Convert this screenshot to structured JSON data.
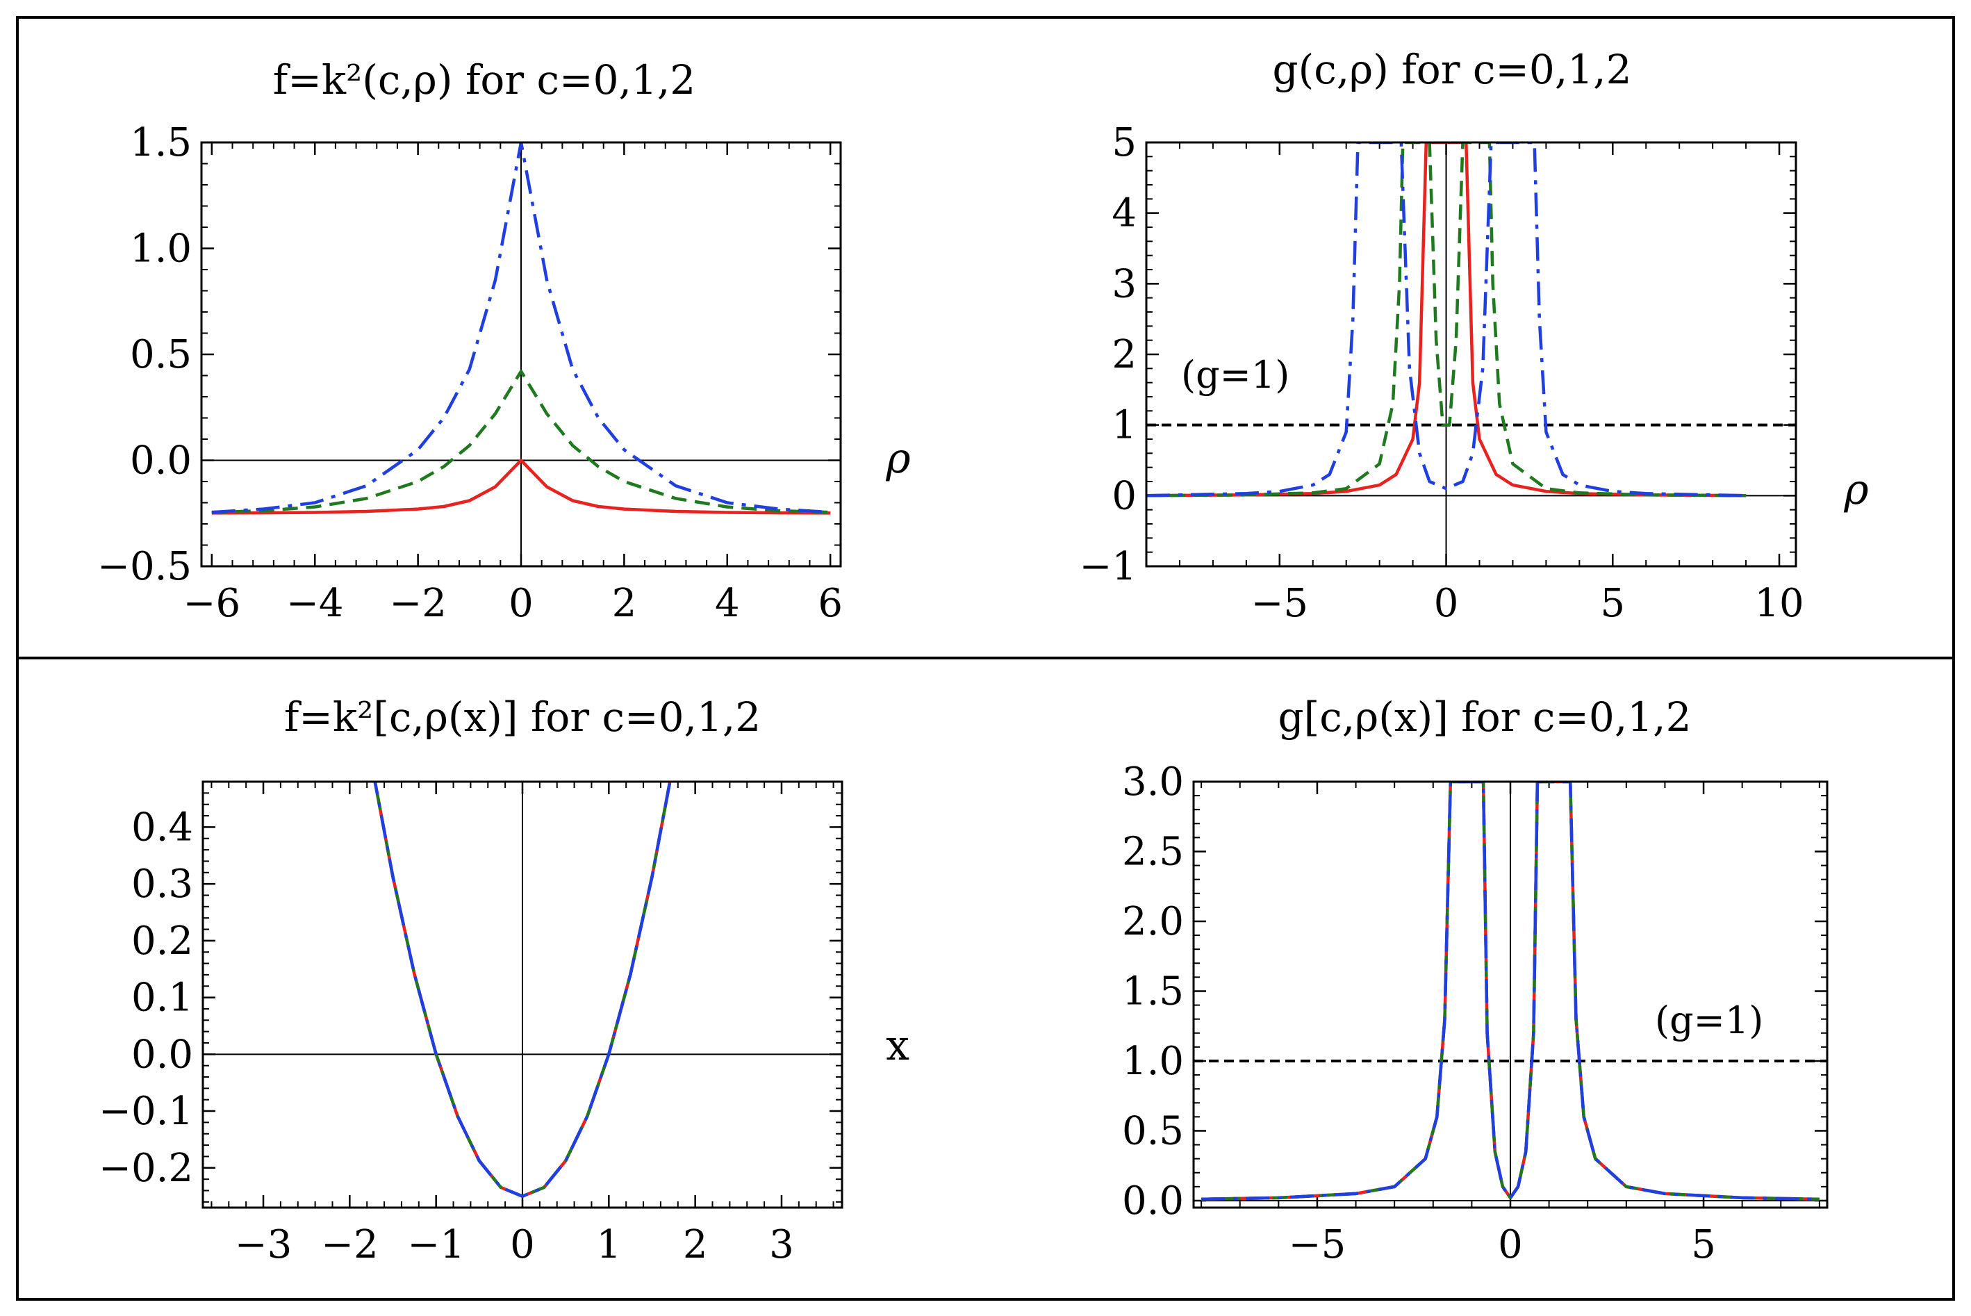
{
  "chart_data": [
    {
      "id": "p1",
      "type": "line",
      "title": "f=k²(c,ρ)  for c=0,1,2",
      "xlabel": "ρ",
      "ylabel": "",
      "xlim": [
        -6.2,
        6.2
      ],
      "ylim": [
        -0.5,
        1.5
      ],
      "xticks": [
        -6,
        -4,
        -2,
        0,
        2,
        4,
        6
      ],
      "yticks": [
        -0.5,
        0.0,
        0.5,
        1.0,
        1.5
      ],
      "xtick_labels": [
        "−6",
        "−4",
        "−2",
        "0",
        "2",
        "4",
        "6"
      ],
      "ytick_labels": [
        "−0.5",
        "0.0",
        "0.5",
        "1.0",
        "1.5"
      ],
      "series": [
        {
          "name": "c=0",
          "color": "#e8231f",
          "style": "solid",
          "x": [
            -6,
            -5,
            -4,
            -3,
            -2,
            -1.5,
            -1,
            -0.5,
            0,
            0.5,
            1,
            1.5,
            2,
            3,
            4,
            5,
            6
          ],
          "y": [
            -0.249,
            -0.248,
            -0.246,
            -0.241,
            -0.23,
            -0.218,
            -0.19,
            -0.125,
            0.0,
            -0.125,
            -0.19,
            -0.218,
            -0.23,
            -0.241,
            -0.246,
            -0.248,
            -0.249
          ]
        },
        {
          "name": "c=1",
          "color": "#1f7a1f",
          "style": "dashed",
          "x": [
            -6,
            -5,
            -4,
            -3,
            -2,
            -1.5,
            -1,
            -0.5,
            0,
            0.5,
            1,
            1.5,
            2,
            3,
            4,
            5,
            6
          ],
          "y": [
            -0.245,
            -0.238,
            -0.22,
            -0.18,
            -0.1,
            -0.03,
            0.07,
            0.22,
            0.42,
            0.22,
            0.07,
            -0.03,
            -0.1,
            -0.18,
            -0.22,
            -0.238,
            -0.245
          ]
        },
        {
          "name": "c=2",
          "color": "#1f3fe0",
          "style": "dashdot",
          "x": [
            -6,
            -5,
            -4,
            -3,
            -2,
            -1.5,
            -1,
            -0.5,
            0,
            0.5,
            1,
            1.5,
            2,
            3,
            4,
            5,
            6
          ],
          "y": [
            -0.245,
            -0.23,
            -0.2,
            -0.12,
            0.05,
            0.2,
            0.43,
            0.85,
            1.5,
            0.85,
            0.43,
            0.2,
            0.05,
            -0.12,
            -0.2,
            -0.23,
            -0.245
          ]
        }
      ]
    },
    {
      "id": "p2",
      "type": "line",
      "title": "g(c,ρ) for c=0,1,2",
      "xlabel": "ρ",
      "ylabel": "",
      "xlim": [
        -9,
        10.5
      ],
      "ylim": [
        -1,
        5
      ],
      "xticks": [
        -5,
        0,
        5,
        10
      ],
      "yticks": [
        -1,
        0,
        1,
        2,
        3,
        4,
        5
      ],
      "xtick_labels": [
        "−5",
        "0",
        "5",
        "10"
      ],
      "ytick_labels": [
        "−1",
        "0",
        "1",
        "2",
        "3",
        "4",
        "5"
      ],
      "annotation": "(g=1)",
      "reference_line": {
        "y": 1,
        "color": "#000000",
        "style": "dashed"
      },
      "series": [
        {
          "name": "c=0",
          "color": "#e8231f",
          "style": "solid",
          "x": [
            -9,
            -6,
            -4,
            -3,
            -2,
            -1.5,
            -1,
            -0.8,
            -0.6,
            0.6,
            0.8,
            1,
            1.5,
            2,
            3,
            4,
            6,
            9
          ],
          "y": [
            0.0,
            0.01,
            0.03,
            0.06,
            0.15,
            0.3,
            0.8,
            1.6,
            5,
            5,
            1.6,
            0.8,
            0.3,
            0.15,
            0.06,
            0.03,
            0.01,
            0.0
          ]
        },
        {
          "name": "c=1",
          "color": "#1f7a1f",
          "style": "dashed",
          "x": [
            -9,
            -6,
            -4,
            -3,
            -2,
            -1.6,
            -1.4,
            -1.3,
            -0.5,
            -0.3,
            -0.1,
            0.1,
            0.3,
            0.5,
            1.3,
            1.4,
            1.6,
            2,
            3,
            4,
            6,
            9
          ],
          "y": [
            0.0,
            0.01,
            0.04,
            0.1,
            0.45,
            1.3,
            3.0,
            5,
            5,
            2.2,
            1.0,
            1.0,
            2.2,
            5,
            5,
            3.0,
            1.3,
            0.45,
            0.1,
            0.04,
            0.01,
            0.0
          ]
        },
        {
          "name": "c=2",
          "color": "#1f3fe0",
          "style": "dashdot",
          "x": [
            -9,
            -6,
            -5,
            -4,
            -3.5,
            -3,
            -2.8,
            -2.65,
            -1.35,
            -1.1,
            -0.8,
            -0.5,
            0,
            0.5,
            0.8,
            1.1,
            1.35,
            2.65,
            2.8,
            3,
            3.5,
            4,
            5,
            6,
            9
          ],
          "y": [
            0.0,
            0.03,
            0.06,
            0.15,
            0.3,
            0.9,
            2.5,
            5,
            5,
            1.8,
            0.6,
            0.2,
            0.1,
            0.2,
            0.6,
            1.8,
            5,
            5,
            2.5,
            0.9,
            0.3,
            0.15,
            0.06,
            0.03,
            0.0
          ]
        }
      ]
    },
    {
      "id": "p3",
      "type": "line",
      "title": "f=k²[c,ρ(x)] for c=0,1,2",
      "xlabel": "x",
      "ylabel": "",
      "xlim": [
        -3.7,
        3.7
      ],
      "ylim": [
        -0.27,
        0.48
      ],
      "xticks": [
        -3,
        -2,
        -1,
        0,
        1,
        2,
        3
      ],
      "yticks": [
        -0.2,
        -0.1,
        0.0,
        0.1,
        0.2,
        0.3,
        0.4
      ],
      "xtick_labels": [
        "−3",
        "−2",
        "−1",
        "0",
        "1",
        "2",
        "3"
      ],
      "ytick_labels": [
        "−0.2",
        "−0.1",
        "0.0",
        "0.1",
        "0.2",
        "0.3",
        "0.4"
      ],
      "series": [
        {
          "name": "c=0",
          "color": "#e8231f",
          "style": "solid",
          "x": [
            -1.73,
            -1.5,
            -1.25,
            -1.0,
            -0.75,
            -0.5,
            -0.25,
            0,
            0.25,
            0.5,
            0.75,
            1.0,
            1.25,
            1.5,
            1.73
          ],
          "y": [
            0.4984,
            0.3125,
            0.1406,
            0.0,
            -0.1094,
            -0.1875,
            -0.2344,
            -0.25,
            -0.2344,
            -0.1875,
            -0.1094,
            0.0,
            0.1406,
            0.3125,
            0.4984
          ]
        },
        {
          "name": "c=1",
          "color": "#1f7a1f",
          "style": "dashed",
          "x": [
            -1.73,
            -1.5,
            -1.25,
            -1.0,
            -0.75,
            -0.5,
            -0.25,
            0,
            0.25,
            0.5,
            0.75,
            1.0,
            1.25,
            1.5,
            1.73
          ],
          "y": [
            0.4984,
            0.3125,
            0.1406,
            0.0,
            -0.1094,
            -0.1875,
            -0.2344,
            -0.25,
            -0.2344,
            -0.1875,
            -0.1094,
            0.0,
            0.1406,
            0.3125,
            0.4984
          ]
        },
        {
          "name": "c=2",
          "color": "#1f3fe0",
          "style": "dashdot",
          "x": [
            -1.73,
            -1.5,
            -1.25,
            -1.0,
            -0.75,
            -0.5,
            -0.25,
            0,
            0.25,
            0.5,
            0.75,
            1.0,
            1.25,
            1.5,
            1.73
          ],
          "y": [
            0.4984,
            0.3125,
            0.1406,
            0.0,
            -0.1094,
            -0.1875,
            -0.2344,
            -0.25,
            -0.2344,
            -0.1875,
            -0.1094,
            0.0,
            0.1406,
            0.3125,
            0.4984
          ]
        }
      ]
    },
    {
      "id": "p4",
      "type": "line",
      "title": "g[c,ρ(x)] for c=0,1,2",
      "xlabel": "",
      "ylabel": "",
      "xlim": [
        -8.2,
        8.2
      ],
      "ylim": [
        -0.05,
        3.0
      ],
      "xticks": [
        -5,
        0,
        5
      ],
      "yticks": [
        0.0,
        0.5,
        1.0,
        1.5,
        2.0,
        2.5,
        3.0
      ],
      "xtick_labels": [
        "−5",
        "0",
        "5"
      ],
      "ytick_labels": [
        "0.0",
        "0.5",
        "1.0",
        "1.5",
        "2.0",
        "2.5",
        "3.0"
      ],
      "annotation": "(g=1)",
      "reference_line": {
        "y": 1,
        "color": "#000000",
        "style": "dashed"
      },
      "series": [
        {
          "name": "c=0",
          "color": "#e8231f",
          "style": "solid",
          "x": [
            -8,
            -6,
            -4,
            -3,
            -2.2,
            -1.9,
            -1.7,
            -1.55,
            -1.45,
            -0.7,
            -0.6,
            -0.4,
            -0.2,
            0,
            0.2,
            0.4,
            0.6,
            0.7,
            1.45,
            1.55,
            1.7,
            1.9,
            2.2,
            3,
            4,
            6,
            8
          ],
          "y": [
            0.01,
            0.02,
            0.05,
            0.1,
            0.3,
            0.6,
            1.3,
            3.0,
            3.0,
            3.0,
            1.2,
            0.35,
            0.1,
            0.02,
            0.1,
            0.35,
            1.2,
            3.0,
            3.0,
            3.0,
            1.3,
            0.6,
            0.3,
            0.1,
            0.05,
            0.02,
            0.01
          ]
        },
        {
          "name": "c=1",
          "color": "#1f7a1f",
          "style": "dashed",
          "x": [
            -8,
            -6,
            -4,
            -3,
            -2.2,
            -1.9,
            -1.7,
            -1.55,
            -1.45,
            -0.7,
            -0.6,
            -0.4,
            -0.2,
            0,
            0.2,
            0.4,
            0.6,
            0.7,
            1.45,
            1.55,
            1.7,
            1.9,
            2.2,
            3,
            4,
            6,
            8
          ],
          "y": [
            0.01,
            0.02,
            0.05,
            0.1,
            0.3,
            0.6,
            1.3,
            3.0,
            3.0,
            3.0,
            1.2,
            0.35,
            0.1,
            0.02,
            0.1,
            0.35,
            1.2,
            3.0,
            3.0,
            3.0,
            1.3,
            0.6,
            0.3,
            0.1,
            0.05,
            0.02,
            0.01
          ]
        },
        {
          "name": "c=2",
          "color": "#1f3fe0",
          "style": "dashdot",
          "x": [
            -8,
            -6,
            -4,
            -3,
            -2.2,
            -1.9,
            -1.7,
            -1.55,
            -1.45,
            -0.7,
            -0.6,
            -0.4,
            -0.2,
            0,
            0.2,
            0.4,
            0.6,
            0.7,
            1.45,
            1.55,
            1.7,
            1.9,
            2.2,
            3,
            4,
            6,
            8
          ],
          "y": [
            0.01,
            0.02,
            0.05,
            0.1,
            0.3,
            0.6,
            1.3,
            3.0,
            3.0,
            3.0,
            1.2,
            0.35,
            0.1,
            0.02,
            0.1,
            0.35,
            1.2,
            3.0,
            3.0,
            3.0,
            1.3,
            0.6,
            0.3,
            0.1,
            0.05,
            0.02,
            0.01
          ]
        }
      ]
    }
  ]
}
